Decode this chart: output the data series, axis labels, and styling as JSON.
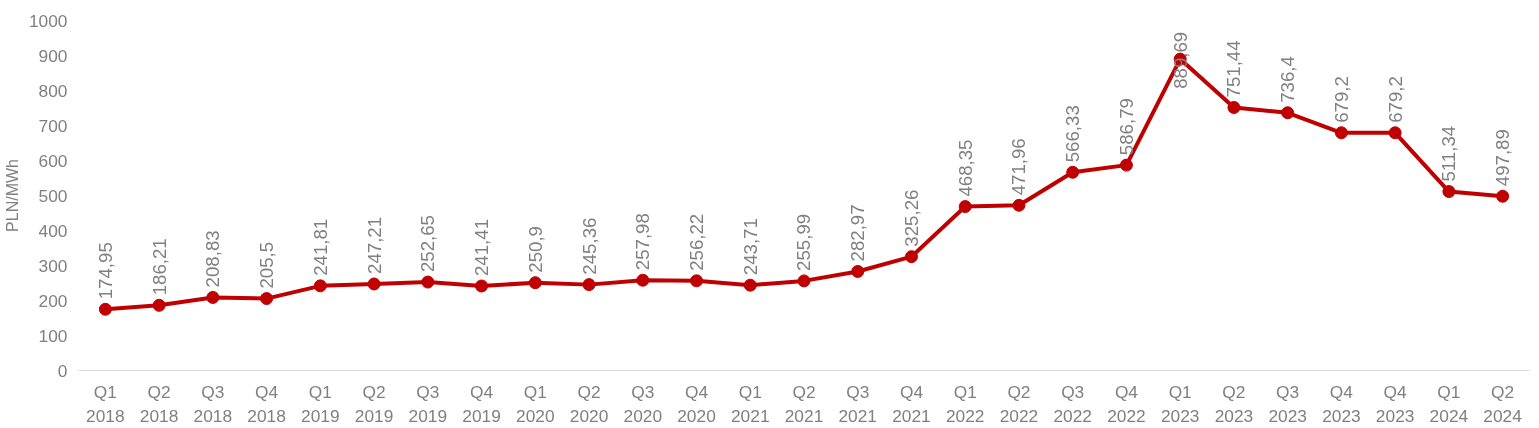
{
  "chart_data": {
    "type": "line",
    "ylabel": "PLN/MWh",
    "categories": [
      "Q1\n2018",
      "Q2\n2018",
      "Q3\n2018",
      "Q4\n2018",
      "Q1\n2019",
      "Q2\n2019",
      "Q3\n2019",
      "Q4\n2019",
      "Q1\n2020",
      "Q2\n2020",
      "Q3\n2020",
      "Q4\n2020",
      "Q1\n2021",
      "Q2\n2021",
      "Q3\n2021",
      "Q4\n2021",
      "Q1\n2022",
      "Q2\n2022",
      "Q3\n2022",
      "Q4\n2022",
      "Q1\n2023",
      "Q2\n2023",
      "Q3\n2023",
      "Q4\n2023",
      "Q4\n2023",
      "Q1\n2024",
      "Q2\n2024"
    ],
    "series": [
      {
        "color": "#c00000",
        "values": [
          174.95,
          186.21,
          208.83,
          205.5,
          241.81,
          247.21,
          252.65,
          241.41,
          250.9,
          245.36,
          257.98,
          256.22,
          243.71,
          255.99,
          282.97,
          325.26,
          468.35,
          471.96,
          566.33,
          586.79,
          889.69,
          751.44,
          736.4,
          679.2,
          679.2,
          511.34,
          497.89
        ],
        "value_labels": [
          "174,95",
          "186,21",
          "208,83",
          "205,5",
          "241,81",
          "247,21",
          "252,65",
          "241,41",
          "250,9",
          "245,36",
          "257,98",
          "256,22",
          "243,71",
          "255,99",
          "282,97",
          "325,26",
          "468,35",
          "471,96",
          "566,33",
          "586,79",
          "889,69",
          "751,44",
          "736,4",
          "679,2",
          "679,2",
          "511,34",
          "497,89"
        ]
      }
    ],
    "ylim": [
      0,
      1000
    ],
    "yticks": [
      0,
      100,
      200,
      300,
      400,
      500,
      600,
      700,
      800,
      900,
      1000
    ],
    "grid": false,
    "marker": "circle",
    "line_style": "solid"
  }
}
